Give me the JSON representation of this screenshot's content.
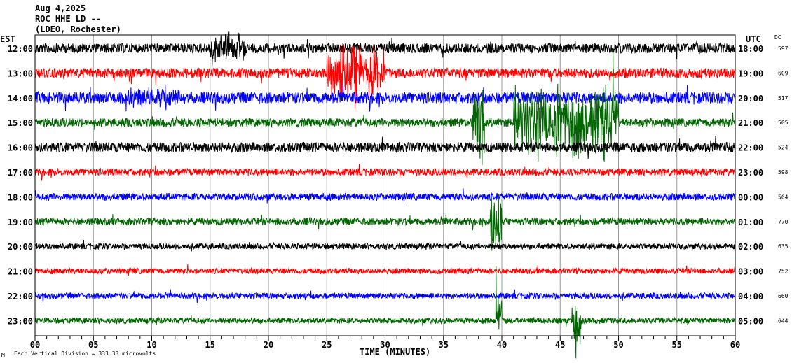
{
  "chart_data": {
    "type": "line",
    "title_lines": [
      "Aug 4,2025",
      "ROC HHE LD --",
      "(LDEO, Rochester)"
    ],
    "left_axis_title": "EST",
    "right_axis_title": "UTC",
    "dc_title": "DC",
    "xlabel": "TIME (MINUTES)",
    "xlim": [
      0,
      60
    ],
    "xticks": [
      "00",
      "05",
      "10",
      "15",
      "20",
      "25",
      "30",
      "35",
      "40",
      "45",
      "50",
      "55",
      "60"
    ],
    "scale_note": "Each Vertical Division =  333.33 microvolts",
    "corner_mark": "M",
    "grid": true,
    "colors": {
      "black": "#000000",
      "red": "#ff0000",
      "blue": "#0000ff",
      "green": "#006600",
      "grid": "#999999"
    },
    "traces": [
      {
        "est": "12:00",
        "utc": "18:00",
        "dc": "597",
        "color": "#000000",
        "amp": 7
      },
      {
        "est": "13:00",
        "utc": "19:00",
        "dc": "609",
        "color": "#ff0000",
        "amp": 7
      },
      {
        "est": "14:00",
        "utc": "20:00",
        "dc": "517",
        "color": "#0000ff",
        "amp": 8
      },
      {
        "est": "15:00",
        "utc": "21:00",
        "dc": "505",
        "color": "#006600",
        "amp": 6
      },
      {
        "est": "16:00",
        "utc": "22:00",
        "dc": "524",
        "color": "#000000",
        "amp": 7
      },
      {
        "est": "17:00",
        "utc": "23:00",
        "dc": "598",
        "color": "#ff0000",
        "amp": 5
      },
      {
        "est": "18:00",
        "utc": "00:00",
        "dc": "564",
        "color": "#0000ff",
        "amp": 5
      },
      {
        "est": "19:00",
        "utc": "01:00",
        "dc": "770",
        "color": "#006600",
        "amp": 5
      },
      {
        "est": "20:00",
        "utc": "02:00",
        "dc": "635",
        "color": "#000000",
        "amp": 4
      },
      {
        "est": "21:00",
        "utc": "03:00",
        "dc": "752",
        "color": "#ff0000",
        "amp": 4
      },
      {
        "est": "22:00",
        "utc": "04:00",
        "dc": "660",
        "color": "#0000ff",
        "amp": 4
      },
      {
        "est": "23:00",
        "utc": "05:00",
        "dc": "644",
        "color": "#006600",
        "amp": 4
      }
    ],
    "events": [
      {
        "trace": 1,
        "start": 25,
        "end": 30,
        "amp": 45
      },
      {
        "trace": 0,
        "start": 15,
        "end": 18,
        "amp": 25
      },
      {
        "trace": 3,
        "start": 37.5,
        "end": 38.5,
        "amp": 80
      },
      {
        "trace": 3,
        "start": 41,
        "end": 50,
        "amp": 60
      },
      {
        "trace": 7,
        "start": 39,
        "end": 40,
        "amp": 50
      },
      {
        "trace": 11,
        "start": 39.5,
        "end": 40,
        "amp": 45
      },
      {
        "trace": 11,
        "start": 46,
        "end": 46.8,
        "amp": 45
      },
      {
        "trace": 2,
        "start": 8,
        "end": 13,
        "amp": 18
      }
    ]
  }
}
